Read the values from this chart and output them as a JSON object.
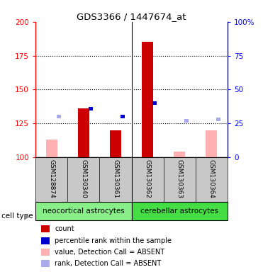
{
  "title": "GDS3366 / 1447674_at",
  "samples": [
    "GSM128874",
    "GSM130340",
    "GSM130361",
    "GSM130362",
    "GSM130363",
    "GSM130364"
  ],
  "ylim_left": [
    100,
    200
  ],
  "ylim_right": [
    0,
    100
  ],
  "yticks_left": [
    100,
    125,
    150,
    175,
    200
  ],
  "yticks_right": [
    0,
    25,
    50,
    75,
    100
  ],
  "ytick_labels_right": [
    "0",
    "25",
    "50",
    "75",
    "100%"
  ],
  "count_bars": {
    "GSM128874": {
      "absent": true,
      "absent_value": 113
    },
    "GSM130340": {
      "absent": false,
      "value": 136
    },
    "GSM130361": {
      "absent": false,
      "value": 120
    },
    "GSM130362": {
      "absent": false,
      "value": 185
    },
    "GSM130363": {
      "absent": true,
      "absent_value": 104
    },
    "GSM130364": {
      "absent": true,
      "absent_value": 120
    }
  },
  "percentile_bars": {
    "GSM128874": {
      "absent": true,
      "absent_value": 130
    },
    "GSM130340": {
      "absent": false,
      "value": 136
    },
    "GSM130361": {
      "absent": false,
      "value": 130
    },
    "GSM130362": {
      "absent": false,
      "value": 140
    },
    "GSM130363": {
      "absent": true,
      "absent_value": 127
    },
    "GSM130364": {
      "absent": true,
      "absent_value": 128
    }
  },
  "colors": {
    "count_present": "#cc0000",
    "count_absent": "#ffb0b0",
    "percentile_present": "#0000cc",
    "percentile_absent": "#aaaaee",
    "bg_label": "#c8c8c8",
    "neo_color": "#88ee88",
    "cer_color": "#44dd44"
  },
  "legend_items": [
    {
      "color": "#cc0000",
      "label": "count"
    },
    {
      "color": "#0000cc",
      "label": "percentile rank within the sample"
    },
    {
      "color": "#ffb0b0",
      "label": "value, Detection Call = ABSENT"
    },
    {
      "color": "#aaaaee",
      "label": "rank, Detection Call = ABSENT"
    }
  ],
  "neo_label": "neocortical astrocytes",
  "cer_label": "cerebellar astrocytes",
  "cell_type_label": "cell type"
}
